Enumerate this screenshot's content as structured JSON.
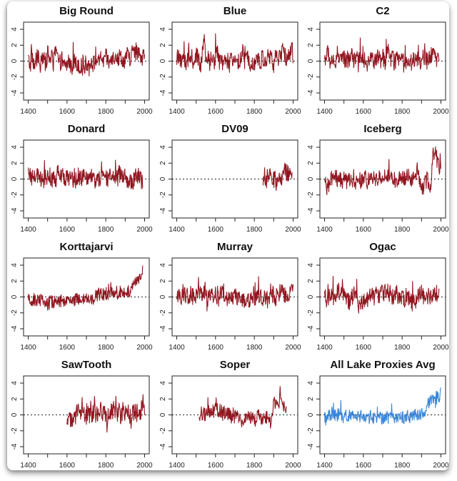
{
  "chart_data": [
    {
      "type": "line",
      "title": "Big Round",
      "color": "#8b0a14",
      "xlim": [
        1376,
        2024
      ],
      "ylim": [
        -4.9,
        4.9
      ],
      "xticks": [
        1400,
        1600,
        1800,
        2000
      ],
      "xminor": [
        1400,
        1500,
        1600,
        1700,
        1800,
        1900,
        2000
      ],
      "yticks": [
        -4,
        -2,
        0,
        2,
        4
      ],
      "start": 1400,
      "step": 10,
      "values": [
        0.3,
        -0.6,
        0.8,
        -0.9,
        0.2,
        0.5,
        -0.7,
        0.9,
        0.1,
        -0.4,
        1.0,
        0.2,
        0.6,
        -0.3,
        1.2,
        0.7,
        -0.5,
        0.1,
        -0.8,
        -0.3,
        -0.6,
        0.2,
        -0.9,
        -0.4,
        0.1,
        -0.7,
        -0.2,
        -1.0,
        -0.3,
        -0.8,
        -0.1,
        -0.6,
        0.2,
        -0.5,
        -0.2,
        0.4,
        -0.4,
        0.1,
        0.6,
        -0.3,
        0.5,
        0.2,
        -0.6,
        0.8,
        0.3,
        1.0,
        0.2,
        0.5,
        0.7,
        -0.2,
        0.4,
        0.8,
        0.3,
        0.5,
        1.5,
        0.9,
        1.0,
        0.6,
        0.8,
        0.5,
        1.2
      ],
      "amp": 1.1
    },
    {
      "type": "line",
      "title": "Blue",
      "color": "#8b0a14",
      "xlim": [
        1376,
        2024
      ],
      "ylim": [
        -4.9,
        4.9
      ],
      "xticks": [
        1400,
        1600,
        1800,
        2000
      ],
      "xminor": [
        1400,
        1500,
        1600,
        1700,
        1800,
        1900,
        2000
      ],
      "yticks": [
        -4,
        -2,
        0,
        2,
        4
      ],
      "start": 1400,
      "step": 10,
      "values": [
        0.5,
        0.2,
        -0.3,
        0.8,
        0.1,
        -0.6,
        0.4,
        0.2,
        -0.2,
        0.3,
        0.7,
        0.1,
        -0.4,
        0.9,
        1.8,
        0.3,
        0.2,
        -0.1,
        0.5,
        -0.2,
        0.6,
        1.2,
        0.1,
        -0.5,
        0.3,
        -0.4,
        0.2,
        -0.6,
        0.0,
        -0.3,
        0.4,
        0.8,
        -0.2,
        0.1,
        1.0,
        -0.3,
        0.0,
        0.6,
        -0.1,
        0.3,
        -0.4,
        0.8,
        0.0,
        -0.2,
        0.3,
        0.2,
        -0.3,
        0.5,
        0.6,
        0.1,
        -0.5,
        0.9,
        0.2,
        0.3,
        0.6,
        1.6,
        0.7,
        0.3,
        0.9,
        1.4,
        0.5
      ],
      "amp": 1.2
    },
    {
      "type": "line",
      "title": "C2",
      "color": "#8b0a14",
      "xlim": [
        1376,
        2024
      ],
      "ylim": [
        -4.9,
        4.9
      ],
      "xticks": [
        1400,
        1600,
        1800,
        2000
      ],
      "xminor": [
        1400,
        1500,
        1600,
        1700,
        1800,
        1900,
        2000
      ],
      "yticks": [
        -4,
        -2,
        0,
        2,
        4
      ],
      "start": 1400,
      "step": 10,
      "values": [
        0.3,
        0.6,
        1.2,
        -0.4,
        0.5,
        0.0,
        -0.3,
        0.4,
        0.8,
        0.2,
        0.3,
        -0.2,
        0.5,
        0.1,
        0.9,
        0.2,
        0.6,
        0.0,
        0.4,
        0.3,
        0.1,
        0.5,
        -0.3,
        0.2,
        0.4,
        0.0,
        -0.1,
        0.6,
        0.3,
        0.1,
        0.2,
        -0.2,
        0.8,
        1.3,
        0.0,
        0.4,
        -0.2,
        0.3,
        0.1,
        0.5,
        0.2,
        -0.4,
        0.1,
        0.3,
        -0.5,
        0.0,
        0.4,
        -0.2,
        0.3,
        0.1,
        -0.3,
        0.4,
        0.2,
        0.0,
        0.5,
        0.3,
        0.8,
        0.2,
        0.1,
        0.4
      ],
      "amp": 1.1
    },
    {
      "type": "line",
      "title": "Donard",
      "color": "#8b0a14",
      "xlim": [
        1376,
        2024
      ],
      "ylim": [
        -4.9,
        4.9
      ],
      "xticks": [
        1400,
        1600,
        1800,
        2000
      ],
      "xminor": [
        1400,
        1500,
        1600,
        1700,
        1800,
        1900,
        2000
      ],
      "yticks": [
        -4,
        -2,
        0,
        2,
        4
      ],
      "start": 1400,
      "step": 10,
      "values": [
        -0.2,
        0.3,
        0.1,
        0.6,
        0.8,
        0.2,
        -0.3,
        0.4,
        -0.1,
        0.3,
        0.0,
        0.5,
        -0.4,
        0.2,
        -0.2,
        0.6,
        -0.3,
        0.2,
        0.4,
        0.1,
        0.3,
        -0.2,
        0.5,
        0.0,
        -0.4,
        0.3,
        0.6,
        -0.1,
        0.2,
        0.4,
        0.0,
        -0.3,
        0.3,
        0.5,
        -0.2,
        0.0,
        -0.5,
        0.2,
        0.3,
        0.6,
        0.1,
        -0.2,
        0.4,
        0.0,
        0.3,
        0.5,
        0.1,
        0.6,
        0.8,
        0.4,
        0.7,
        -0.6,
        -0.9,
        -0.2,
        -0.5,
        0.2,
        0.6,
        0.3,
        0.1,
        -1.5
      ],
      "amp": 1.1
    },
    {
      "type": "line",
      "title": "DV09",
      "color": "#8b0a14",
      "xlim": [
        1376,
        2024
      ],
      "ylim": [
        -4.9,
        4.9
      ],
      "xticks": [
        1400,
        1600,
        1800,
        2000
      ],
      "xminor": [
        1400,
        1500,
        1600,
        1700,
        1800,
        1900,
        2000
      ],
      "yticks": [
        -4,
        -2,
        0,
        2,
        4
      ],
      "start": 1845,
      "step": 10,
      "values": [
        -0.2,
        0.5,
        -0.4,
        0.2,
        0.4,
        -0.3,
        0.1,
        -0.5,
        0.3,
        -0.2,
        0.0,
        1.2,
        0.8,
        0.6,
        0.9,
        1.0
      ],
      "amp": 1.1
    },
    {
      "type": "line",
      "title": "Iceberg",
      "color": "#8b0a14",
      "xlim": [
        1376,
        2024
      ],
      "ylim": [
        -4.9,
        4.9
      ],
      "xticks": [
        1400,
        1600,
        1800,
        2000
      ],
      "xminor": [
        1400,
        1500,
        1600,
        1700,
        1800,
        1900,
        2000
      ],
      "yticks": [
        -4,
        -2,
        0,
        2,
        4
      ],
      "start": 1400,
      "step": 10,
      "values": [
        -0.3,
        -0.6,
        -0.8,
        -0.2,
        0.1,
        0.6,
        0.2,
        -0.2,
        0.1,
        -0.4,
        0.2,
        -0.1,
        -0.5,
        0.0,
        -0.3,
        0.3,
        -0.6,
        0.1,
        -0.2,
        -0.4,
        0.0,
        0.2,
        -0.3,
        0.1,
        -0.2,
        0.3,
        -0.4,
        -0.1,
        0.2,
        0.0,
        0.4,
        0.3,
        0.5,
        0.1,
        -0.2,
        0.2,
        0.0,
        -0.3,
        0.1,
        0.3,
        -0.1,
        0.2,
        0.0,
        0.4,
        0.2,
        -0.3,
        0.5,
        0.7,
        1.2,
        -0.2,
        -0.6,
        -1.5,
        -0.4,
        0.1,
        -0.8,
        -0.5,
        3.2,
        3.5,
        2.0,
        1.6,
        1.5
      ],
      "amp": 1.0
    },
    {
      "type": "line",
      "title": "Korttajarvi",
      "color": "#8b0a14",
      "xlim": [
        1376,
        2024
      ],
      "ylim": [
        -4.9,
        4.9
      ],
      "xticks": [
        1400,
        1600,
        1800,
        2000
      ],
      "xminor": [
        1400,
        1500,
        1600,
        1700,
        1800,
        1900,
        2000
      ],
      "yticks": [
        -4,
        -2,
        0,
        2,
        4
      ],
      "start": 1400,
      "step": 10,
      "values": [
        -0.4,
        -0.6,
        -0.5,
        -0.3,
        -0.4,
        -0.5,
        -0.4,
        -0.3,
        -0.5,
        -0.4,
        -0.9,
        -0.8,
        -0.6,
        -0.7,
        -0.5,
        -0.6,
        -0.7,
        -0.5,
        -0.6,
        -0.4,
        -0.5,
        -0.3,
        -0.5,
        -0.2,
        -0.4,
        -0.3,
        -0.2,
        -0.5,
        -0.3,
        -0.1,
        -0.3,
        -0.5,
        -0.2,
        -0.4,
        0.0,
        0.2,
        0.3,
        0.1,
        0.4,
        0.2,
        0.5,
        0.3,
        0.1,
        0.6,
        0.3,
        0.8,
        0.5,
        0.6,
        0.9,
        0.7,
        0.5,
        0.8,
        0.6,
        1.0,
        1.6,
        1.8,
        2.0,
        2.4,
        2.8,
        3.2
      ],
      "amp": 0.8
    },
    {
      "type": "line",
      "title": "Murray",
      "color": "#8b0a14",
      "xlim": [
        1376,
        2024
      ],
      "ylim": [
        -4.9,
        4.9
      ],
      "xticks": [
        1400,
        1600,
        1800,
        2000
      ],
      "xminor": [
        1400,
        1500,
        1600,
        1700,
        1800,
        1900,
        2000
      ],
      "yticks": [
        -4,
        -2,
        0,
        2,
        4
      ],
      "start": 1400,
      "step": 10,
      "values": [
        0.0,
        0.4,
        -0.2,
        0.6,
        0.1,
        0.3,
        -0.3,
        0.5,
        0.0,
        0.2,
        0.4,
        0.6,
        0.3,
        0.0,
        0.5,
        0.1,
        -0.2,
        0.4,
        0.3,
        -0.4,
        0.2,
        0.0,
        -0.2,
        0.6,
        0.5,
        0.3,
        -0.3,
        0.0,
        0.2,
        -0.4,
        0.3,
        0.1,
        -0.2,
        0.0,
        -0.3,
        -0.5,
        -0.6,
        -0.3,
        -0.2,
        0.4,
        -0.4,
        -0.2,
        0.1,
        0.6,
        -0.3,
        0.3,
        0.0,
        -0.4,
        0.2,
        0.1,
        0.4,
        -0.2,
        0.3,
        0.5,
        0.7,
        0.6,
        0.2,
        0.5,
        0.3,
        0.9,
        1.5
      ],
      "amp": 1.1
    },
    {
      "type": "line",
      "title": "Ogac",
      "color": "#8b0a14",
      "xlim": [
        1376,
        2024
      ],
      "ylim": [
        -4.9,
        4.9
      ],
      "xticks": [
        1400,
        1600,
        1800,
        2000
      ],
      "xminor": [
        1400,
        1500,
        1600,
        1700,
        1800,
        1900,
        2000
      ],
      "yticks": [
        -4,
        -2,
        0,
        2,
        4
      ],
      "start": 1400,
      "step": 10,
      "values": [
        0.2,
        -0.2,
        0.0,
        0.3,
        -0.1,
        0.2,
        0.5,
        0.8,
        0.1,
        0.6,
        0.3,
        0.0,
        -0.4,
        -0.6,
        -0.3,
        0.2,
        0.4,
        -0.2,
        -0.7,
        -0.9,
        -0.4,
        -0.6,
        -0.2,
        0.0,
        0.3,
        0.1,
        -0.2,
        0.4,
        0.2,
        0.6,
        0.3,
        0.5,
        0.9,
        0.2,
        0.4,
        0.1,
        0.3,
        0.6,
        0.0,
        -0.3,
        0.2,
        -0.4,
        0.1,
        -0.2,
        -0.5,
        -0.7,
        -0.8,
        -0.9,
        0.3,
        0.5,
        0.7,
        0.2,
        0.4,
        0.1,
        0.3,
        -0.2,
        0.4,
        0.0,
        0.5,
        0.6
      ],
      "amp": 1.1
    },
    {
      "type": "line",
      "title": "SawTooth",
      "color": "#8b0a14",
      "xlim": [
        1376,
        2024
      ],
      "ylim": [
        -4.9,
        4.9
      ],
      "xticks": [
        1400,
        1600,
        1800,
        2000
      ],
      "xminor": [
        1400,
        1500,
        1600,
        1700,
        1800,
        1900,
        2000
      ],
      "yticks": [
        -4,
        -2,
        0,
        2,
        4
      ],
      "start": 1600,
      "step": 10,
      "values": [
        -0.3,
        0.2,
        -0.6,
        -0.9,
        -0.2,
        0.4,
        1.0,
        0.5,
        1.2,
        0.3,
        0.0,
        0.4,
        -0.2,
        0.2,
        0.5,
        0.0,
        -0.3,
        0.6,
        0.2,
        0.4,
        0.1,
        -0.4,
        0.3,
        0.5,
        0.0,
        0.6,
        0.2,
        0.4,
        -0.2,
        0.8,
        0.3,
        0.6,
        0.1,
        -0.2,
        0.5,
        0.3,
        0.2,
        0.0,
        0.3,
        1.2,
        0.4
      ],
      "amp": 1.2
    },
    {
      "type": "line",
      "title": "Soper",
      "color": "#8b0a14",
      "xlim": [
        1376,
        2024
      ],
      "ylim": [
        -4.9,
        4.9
      ],
      "xticks": [
        1400,
        1600,
        1800,
        2000
      ],
      "xminor": [
        1400,
        1500,
        1600,
        1700,
        1800,
        1900,
        2000
      ],
      "yticks": [
        -4,
        -2,
        0,
        2,
        4
      ],
      "start": 1515,
      "step": 10,
      "values": [
        -0.3,
        0.1,
        0.3,
        -0.1,
        0.2,
        0.4,
        0.1,
        0.3,
        0.6,
        0.9,
        0.4,
        0.2,
        0.0,
        0.3,
        0.5,
        0.7,
        -0.2,
        -0.6,
        -0.4,
        -0.5,
        -0.3,
        -0.6,
        -0.7,
        -0.4,
        -0.5,
        -0.2,
        -0.1,
        -0.3,
        -0.4,
        -0.6,
        -0.3,
        -0.2,
        -0.5,
        -0.4,
        -0.7,
        -0.3,
        -0.5,
        -0.9,
        0.8,
        1.5,
        1.9,
        1.6,
        1.8,
        1.4,
        1.2,
        0.3
      ],
      "amp": 0.9
    },
    {
      "type": "line",
      "title": "All Lake Proxies Avg",
      "color": "#2f7fd6",
      "xlim": [
        1376,
        2024
      ],
      "ylim": [
        -4.9,
        4.9
      ],
      "xticks": [
        1400,
        1600,
        1800,
        2000
      ],
      "xminor": [
        1400,
        1500,
        1600,
        1700,
        1800,
        1900,
        2000
      ],
      "yticks": [
        -4,
        -2,
        0,
        2,
        4
      ],
      "start": 1400,
      "step": 10,
      "values": [
        -0.3,
        -0.8,
        0.1,
        -0.2,
        0.3,
        0.0,
        -0.3,
        0.2,
        -0.1,
        0.1,
        -0.4,
        0.0,
        -0.3,
        0.2,
        -0.2,
        0.0,
        -0.4,
        -0.3,
        -0.2,
        0.1,
        -0.3,
        -0.6,
        -0.7,
        -0.5,
        -0.3,
        -0.6,
        -0.4,
        -0.5,
        -0.2,
        -0.4,
        -0.5,
        -0.3,
        -0.2,
        -0.5,
        -0.4,
        -0.3,
        -0.5,
        -0.2,
        -0.4,
        -0.1,
        -0.3,
        -0.5,
        -0.2,
        -0.1,
        -0.3,
        0.0,
        -0.2,
        0.1,
        -0.1,
        0.0,
        0.2,
        0.0,
        0.1,
        1.2,
        1.6,
        2.1,
        1.8,
        1.5,
        2.0,
        1.7,
        3.2
      ],
      "amp": 0.8
    }
  ]
}
